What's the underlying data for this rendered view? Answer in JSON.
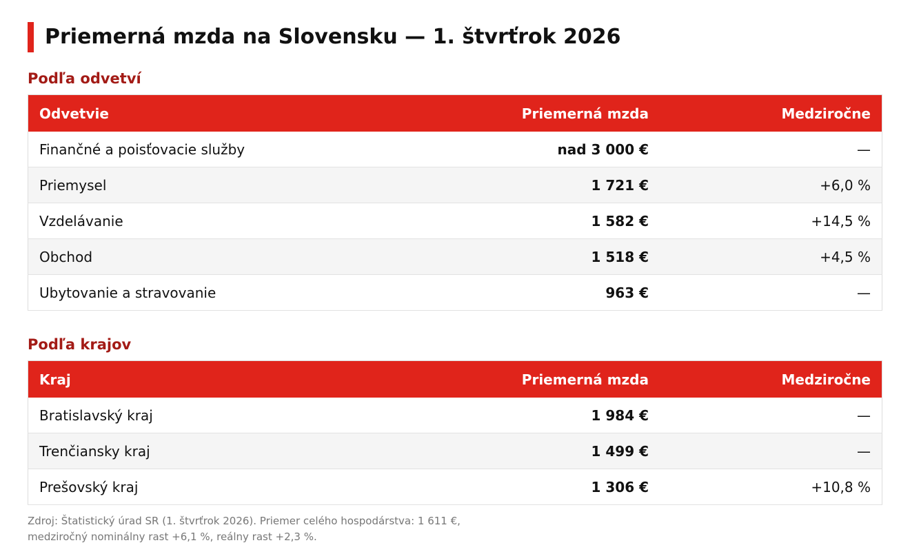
{
  "header": {
    "title": "Priemerná mzda na Slovensku — 1. štvrťrok 2026"
  },
  "sections": [
    {
      "heading": "Podľa odvetví",
      "table": {
        "columns": [
          "Odvetvie",
          "Priemerná mzda",
          "Medziročne"
        ],
        "rows": [
          [
            "Finančné a poisťovacie služby",
            "nad 3 000 €",
            "—"
          ],
          [
            "Priemysel",
            "1 721 €",
            "+6,0 %"
          ],
          [
            "Vzdelávanie",
            "1 582 €",
            "+14,5 %"
          ],
          [
            "Obchod",
            "1 518 €",
            "+4,5 %"
          ],
          [
            "Ubytovanie a stravovanie",
            "963 €",
            "—"
          ]
        ]
      }
    },
    {
      "heading": "Podľa krajov",
      "table": {
        "columns": [
          "Kraj",
          "Priemerná mzda",
          "Medziročne"
        ],
        "rows": [
          [
            "Bratislavský kraj",
            "1 984 €",
            "—"
          ],
          [
            "Trenčiansky kraj",
            "1 499 €",
            "—"
          ],
          [
            "Prešovský kraj",
            "1 306 €",
            "+10,8 %"
          ]
        ]
      }
    }
  ],
  "footnote": "Zdroj: Štatistický úrad SR (1. štvrťrok 2026). Priemer celého hospodárstva: 1 611 €, medziročný nominálny rast +6,1 %, reálny rast +2,3 %."
}
